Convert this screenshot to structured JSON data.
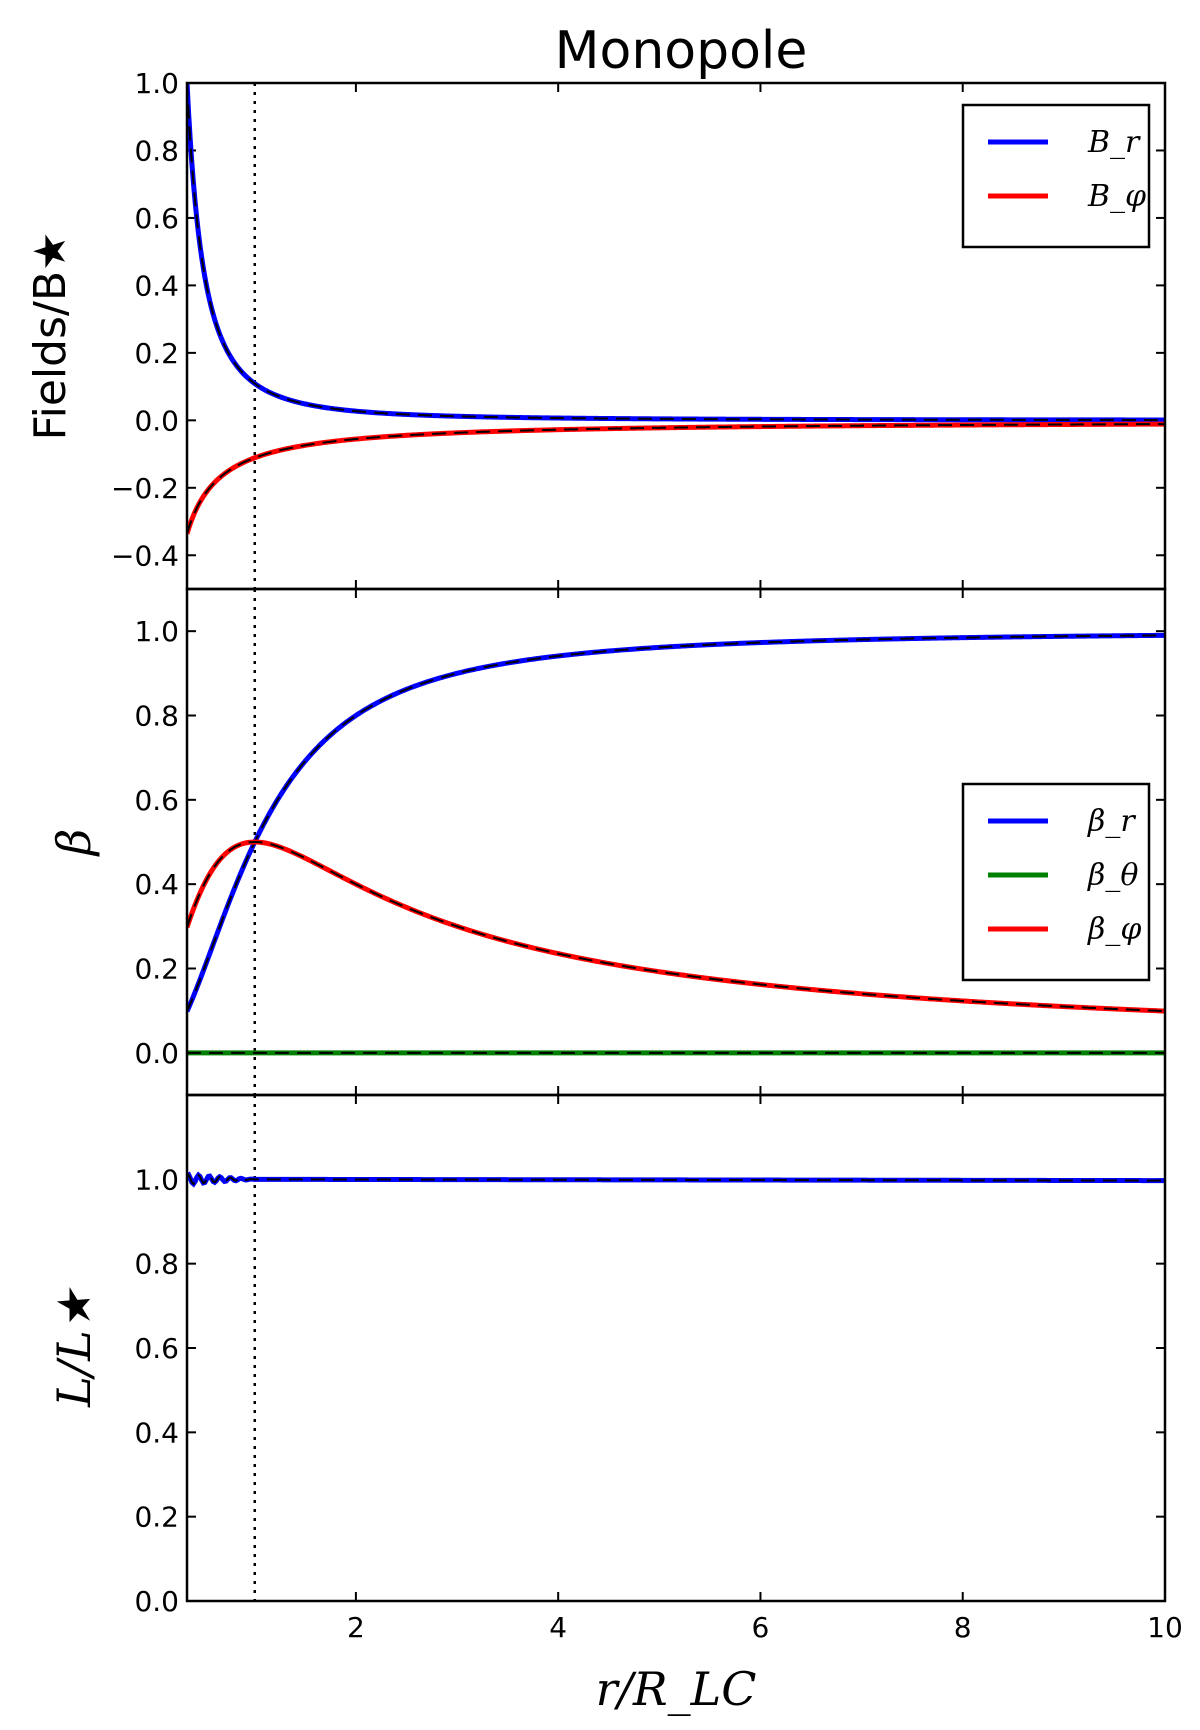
{
  "chart_data": {
    "title": "Monopole",
    "type": "line",
    "xlabel": "r/R_LC",
    "xlim": [
      0.33,
      10
    ],
    "x_ticks": [
      2,
      4,
      6,
      8,
      10
    ],
    "vline_x": 1.0,
    "panels": [
      {
        "id": "fields",
        "ylabel": "Fields/B★",
        "ylim": [
          -0.5,
          1.0
        ],
        "y_ticks": [
          1.0,
          0.8,
          0.6,
          0.4,
          0.2,
          0.0,
          -0.2,
          -0.4
        ],
        "y_tick_labels": [
          "1.0",
          "0.8",
          "0.6",
          "0.4",
          "0.2",
          "0.0",
          "−0.2",
          "−0.4"
        ],
        "legend": {
          "position": "top-right"
        },
        "series": [
          {
            "name": "B_r",
            "color": "#0000ff",
            "formula": "monopole_br"
          },
          {
            "name": "B_φ",
            "color": "#ff0000",
            "formula": "monopole_bphi"
          }
        ]
      },
      {
        "id": "beta",
        "ylabel": "β",
        "ylim": [
          -0.1,
          1.1
        ],
        "y_ticks": [
          1.0,
          0.8,
          0.6,
          0.4,
          0.2,
          0.0
        ],
        "y_tick_labels": [
          "1.0",
          "0.8",
          "0.6",
          "0.4",
          "0.2",
          "0.0"
        ],
        "legend": {
          "position": "center-right"
        },
        "series": [
          {
            "name": "β_r",
            "color": "#0000ff",
            "formula": "monopole_beta_r"
          },
          {
            "name": "β_θ",
            "color": "#008000",
            "formula": "zero"
          },
          {
            "name": "β_φ",
            "color": "#ff0000",
            "formula": "monopole_beta_phi"
          }
        ]
      },
      {
        "id": "luminosity",
        "ylabel": "L/L★",
        "ylim": [
          0.0,
          1.2
        ],
        "y_ticks": [
          1.0,
          0.8,
          0.6,
          0.4,
          0.2,
          0.0
        ],
        "y_tick_labels": [
          "1.0",
          "0.8",
          "0.6",
          "0.4",
          "0.2",
          "0.0"
        ],
        "legend": null,
        "series": [
          {
            "name": "L",
            "color": "#0000ff",
            "formula": "one_with_wiggles"
          }
        ]
      }
    ]
  }
}
